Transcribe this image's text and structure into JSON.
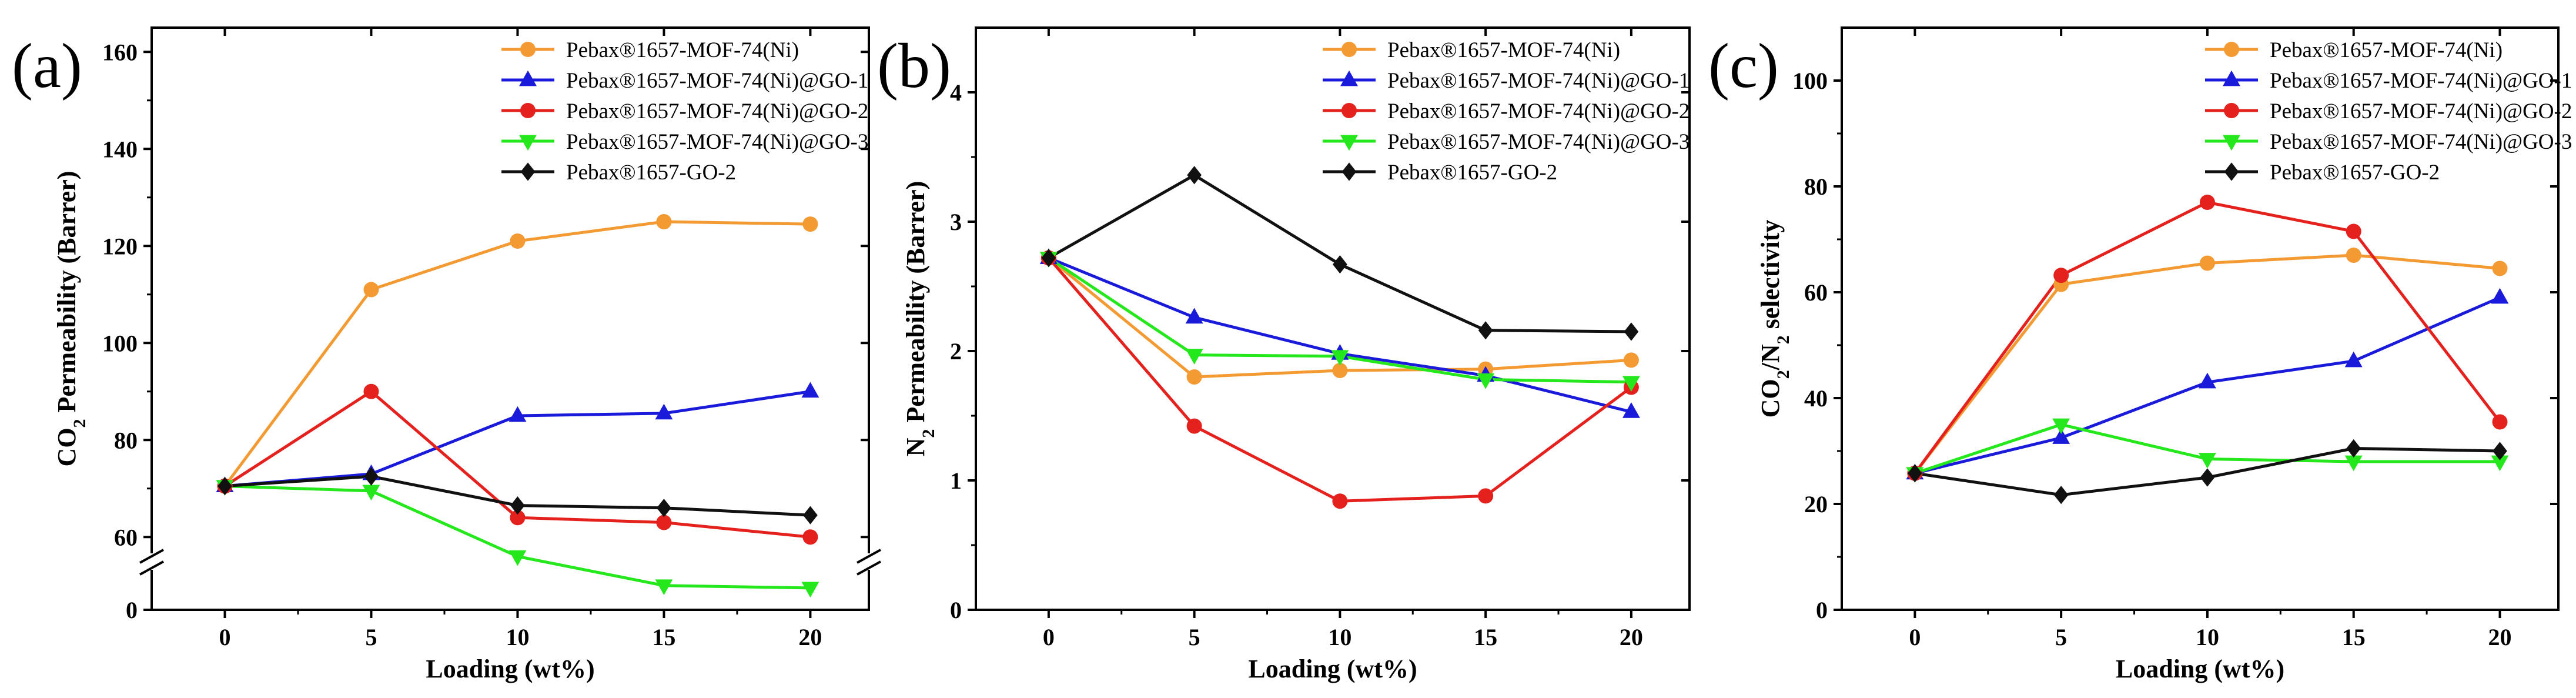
{
  "figure_title": "",
  "chart_data": [
    {
      "type": "line",
      "panel_label": "(a)",
      "title": "",
      "xlabel": "Loading (wt%)",
      "ylabel_parts": [
        "CO",
        "2",
        " Permeability (Barrer)"
      ],
      "x": [
        0,
        5,
        10,
        15,
        20
      ],
      "x_ticks": [
        "0",
        "5",
        "10",
        "15",
        "20"
      ],
      "xlim": [
        -2.5,
        22
      ],
      "ylim": [
        45,
        165
      ],
      "y_ticks": [
        "60",
        "80",
        "100",
        "120",
        "140",
        "160"
      ],
      "y_break": {
        "below_label": "0",
        "break_mark": "//"
      },
      "legend_position": "top-right",
      "series": [
        {
          "name": "Pebax®1657-MOF-74(Ni)",
          "color": "#f39a33",
          "marker": "circle",
          "values": [
            70.5,
            111,
            121,
            125,
            124.5
          ]
        },
        {
          "name": "Pebax®1657-MOF-74(Ni)@GO-1",
          "color": "#1a1adb",
          "marker": "triangle-up",
          "values": [
            70.5,
            73,
            85,
            85.5,
            90
          ]
        },
        {
          "name": "Pebax®1657-MOF-74(Ni)@GO-2",
          "color": "#e5211e",
          "marker": "circle",
          "values": [
            70.5,
            90,
            64,
            63,
            60
          ]
        },
        {
          "name": "Pebax®1657-MOF-74(Ni)@GO-3",
          "color": "#25e81c",
          "marker": "triangle-down",
          "values": [
            70.5,
            69.5,
            56,
            50,
            49.5
          ]
        },
        {
          "name": "Pebax®1657-GO-2",
          "color": "#111111",
          "marker": "diamond",
          "values": [
            70.5,
            72.5,
            66.5,
            66,
            64.5
          ]
        }
      ]
    },
    {
      "type": "line",
      "panel_label": "(b)",
      "title": "",
      "xlabel": "Loading (wt%)",
      "ylabel_parts": [
        "N",
        "2",
        " Permeability (Barrer)"
      ],
      "x": [
        0,
        5,
        10,
        15,
        20
      ],
      "x_ticks": [
        "0",
        "5",
        "10",
        "15",
        "20"
      ],
      "xlim": [
        -2.5,
        22
      ],
      "ylim": [
        0,
        4.5
      ],
      "y_ticks": [
        "0",
        "1",
        "2",
        "3",
        "4"
      ],
      "legend_position": "top-right",
      "series": [
        {
          "name": "Pebax®1657-MOF-74(Ni)",
          "color": "#f39a33",
          "marker": "circle",
          "values": [
            2.72,
            1.8,
            1.85,
            1.86,
            1.93
          ]
        },
        {
          "name": "Pebax®1657-MOF-74(Ni)@GO-1",
          "color": "#1a1adb",
          "marker": "triangle-up",
          "values": [
            2.72,
            2.26,
            1.98,
            1.81,
            1.53
          ]
        },
        {
          "name": "Pebax®1657-MOF-74(Ni)@GO-2",
          "color": "#e5211e",
          "marker": "circle",
          "values": [
            2.72,
            1.42,
            0.84,
            0.88,
            1.72
          ]
        },
        {
          "name": "Pebax®1657-MOF-74(Ni)@GO-3",
          "color": "#25e81c",
          "marker": "triangle-down",
          "values": [
            2.72,
            1.97,
            1.96,
            1.78,
            1.76
          ]
        },
        {
          "name": "Pebax®1657-GO-2",
          "color": "#111111",
          "marker": "diamond",
          "values": [
            2.72,
            3.36,
            2.67,
            2.16,
            2.15
          ]
        }
      ]
    },
    {
      "type": "line",
      "panel_label": "(c)",
      "title": "",
      "xlabel": "Loading (wt%)",
      "ylabel_parts": [
        "CO",
        "2",
        "/N",
        "2",
        " selectivity"
      ],
      "x": [
        0,
        5,
        10,
        15,
        20
      ],
      "x_ticks": [
        "0",
        "5",
        "10",
        "15",
        "20"
      ],
      "xlim": [
        -2.5,
        22
      ],
      "ylim": [
        0,
        110
      ],
      "y_ticks": [
        "0",
        "20",
        "40",
        "60",
        "80",
        "100"
      ],
      "legend_position": "top-right",
      "series": [
        {
          "name": "Pebax®1657-MOF-74(Ni)",
          "color": "#f39a33",
          "marker": "circle",
          "values": [
            25.8,
            61.5,
            65.5,
            67,
            64.5
          ]
        },
        {
          "name": "Pebax®1657-MOF-74(Ni)@GO-1",
          "color": "#1a1adb",
          "marker": "triangle-up",
          "values": [
            25.8,
            32.5,
            43,
            47,
            59
          ]
        },
        {
          "name": "Pebax®1657-MOF-74(Ni)@GO-2",
          "color": "#e5211e",
          "marker": "circle",
          "values": [
            25.8,
            63.2,
            77,
            71.5,
            35.5
          ]
        },
        {
          "name": "Pebax®1657-MOF-74(Ni)@GO-3",
          "color": "#25e81c",
          "marker": "triangle-down",
          "values": [
            25.8,
            35,
            28.5,
            28,
            28
          ]
        },
        {
          "name": "Pebax®1657-GO-2",
          "color": "#111111",
          "marker": "diamond",
          "values": [
            25.8,
            21.7,
            25,
            30.5,
            30
          ]
        }
      ]
    }
  ]
}
